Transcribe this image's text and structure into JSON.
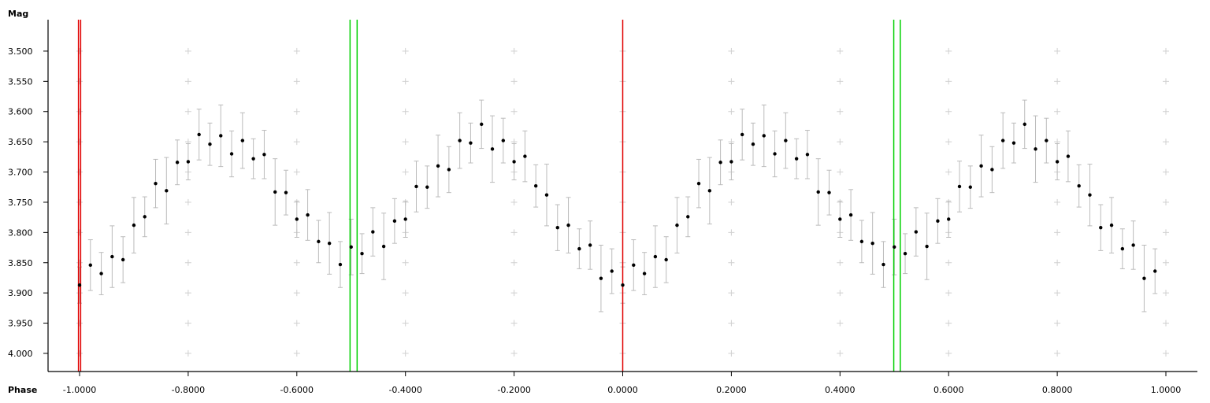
{
  "chart_data": {
    "type": "scatter",
    "title": "",
    "xlabel": "Phase",
    "ylabel": "Mag",
    "xlim": [
      -1.058,
      1.058
    ],
    "ylim": [
      3.448,
      4.03
    ],
    "y_inverted": true,
    "grid": "plus markers at tick intersections",
    "x_ticks": [
      -1.0,
      -0.8,
      -0.6,
      -0.4,
      -0.2,
      0.0,
      0.2,
      0.4,
      0.6,
      0.8,
      1.0
    ],
    "x_tick_labels": [
      "-1.0000",
      "-0.8000",
      "-0.6000",
      "-0.4000",
      "-0.2000",
      "0.0000",
      "0.2000",
      "0.4000",
      "0.6000",
      "0.8000",
      "1.0000"
    ],
    "y_ticks": [
      3.5,
      3.55,
      3.6,
      3.65,
      3.7,
      3.75,
      3.8,
      3.85,
      3.9,
      3.95,
      4.0
    ],
    "y_tick_labels": [
      "3.500",
      "3.550",
      "3.600",
      "3.650",
      "3.700",
      "3.750",
      "3.800",
      "3.850",
      "3.900",
      "3.950",
      "4.000"
    ],
    "repeat_phase_shift": -1,
    "points": {
      "phase": [
        0.0,
        0.02,
        0.04,
        0.06,
        0.08,
        0.1,
        0.12,
        0.14,
        0.16,
        0.18,
        0.2,
        0.22,
        0.24,
        0.26,
        0.28,
        0.3,
        0.32,
        0.34,
        0.36,
        0.38,
        0.4,
        0.42,
        0.44,
        0.46,
        0.48,
        0.5,
        0.52,
        0.54,
        0.56,
        0.58,
        0.6,
        0.62,
        0.64,
        0.66,
        0.68,
        0.7,
        0.72,
        0.74,
        0.76,
        0.78,
        0.8,
        0.82,
        0.84,
        0.86,
        0.88,
        0.9,
        0.92,
        0.94,
        0.96,
        0.98
      ],
      "mag": [
        3.887,
        3.854,
        3.868,
        3.84,
        3.845,
        3.788,
        3.774,
        3.719,
        3.731,
        3.684,
        3.683,
        3.638,
        3.654,
        3.64,
        3.67,
        3.648,
        3.678,
        3.671,
        3.733,
        3.734,
        3.778,
        3.771,
        3.815,
        3.818,
        3.853,
        3.824,
        3.835,
        3.799,
        3.823,
        3.781,
        3.778,
        3.724,
        3.725,
        3.69,
        3.696,
        3.648,
        3.652,
        3.621,
        3.662,
        3.648,
        3.683,
        3.674,
        3.723,
        3.738,
        3.792,
        3.788,
        3.827,
        3.821,
        3.876,
        3.864
      ],
      "err": [
        0.03,
        0.042,
        0.035,
        0.051,
        0.038,
        0.046,
        0.033,
        0.04,
        0.055,
        0.037,
        0.03,
        0.042,
        0.035,
        0.051,
        0.038,
        0.046,
        0.033,
        0.04,
        0.055,
        0.037,
        0.03,
        0.042,
        0.035,
        0.051,
        0.038,
        0.046,
        0.033,
        0.04,
        0.055,
        0.037,
        0.03,
        0.042,
        0.035,
        0.051,
        0.038,
        0.046,
        0.033,
        0.04,
        0.055,
        0.037,
        0.03,
        0.042,
        0.035,
        0.051,
        0.038,
        0.046,
        0.033,
        0.04,
        0.055,
        0.037
      ]
    },
    "markers": [
      {
        "phase": -1.002,
        "color": "#e00000"
      },
      {
        "phase": -0.998,
        "color": "#e00000"
      },
      {
        "phase": 0.0,
        "color": "#e00000"
      },
      {
        "phase": -0.502,
        "color": "#00d000"
      },
      {
        "phase": -0.489,
        "color": "#00d000"
      },
      {
        "phase": 0.499,
        "color": "#00d000"
      },
      {
        "phase": 0.511,
        "color": "#00d000"
      }
    ],
    "colors": {
      "point": "#000000",
      "errorbar": "#bbbbbb",
      "grid": "#d0d0d0",
      "axis": "#000000"
    }
  }
}
